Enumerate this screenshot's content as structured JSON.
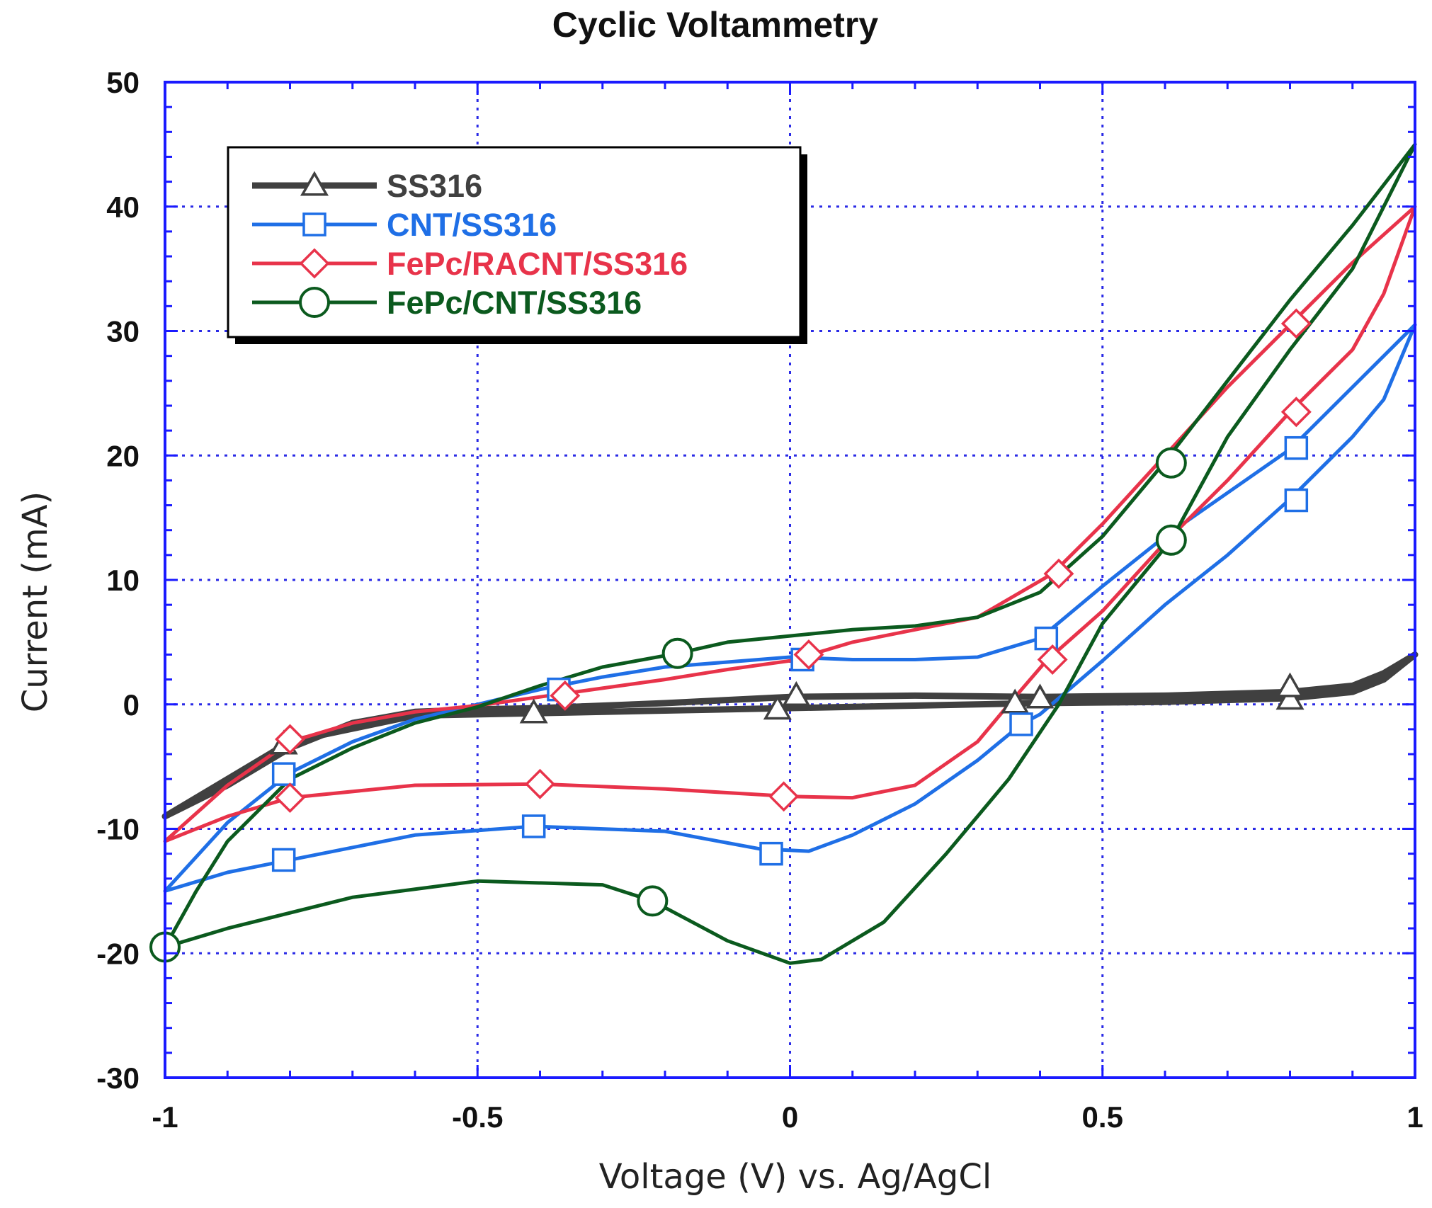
{
  "chart_data": {
    "type": "line",
    "title": "Cyclic Voltammetry",
    "xlabel": "Voltage (V) vs. Ag/AgCl",
    "ylabel": "Current (mA)",
    "xlim": [
      -1,
      1
    ],
    "ylim": [
      -30,
      50
    ],
    "xticks": [
      -1,
      -0.5,
      0,
      0.5,
      1
    ],
    "xtick_labels": [
      "-1",
      "-0.5",
      "0",
      "0.5",
      "1"
    ],
    "yticks": [
      -30,
      -20,
      -10,
      0,
      10,
      20,
      30,
      40,
      50
    ],
    "ytick_labels": [
      "-30",
      "-20",
      "-10",
      "0",
      "10",
      "20",
      "30",
      "40",
      "50"
    ],
    "grid": true,
    "legend_position": "top-left",
    "series": [
      {
        "name": "SS316",
        "color": "#404040",
        "marker": "triangle",
        "line_points": [
          [
            -1,
            -9
          ],
          [
            -0.9,
            -6.5
          ],
          [
            -0.8,
            -3.5
          ],
          [
            -0.7,
            -1.5
          ],
          [
            -0.6,
            -0.6
          ],
          [
            -0.5,
            -0.4
          ],
          [
            -0.4,
            -0.3
          ],
          [
            -0.2,
            0.1
          ],
          [
            0,
            0.6
          ],
          [
            0.2,
            0.7
          ],
          [
            0.4,
            0.6
          ],
          [
            0.6,
            0.7
          ],
          [
            0.8,
            1.0
          ],
          [
            0.9,
            1.5
          ],
          [
            0.95,
            2.5
          ],
          [
            1.0,
            4.0
          ],
          [
            0.95,
            2.0
          ],
          [
            0.9,
            1.0
          ],
          [
            0.8,
            0.5
          ],
          [
            0.6,
            0.2
          ],
          [
            0.4,
            0.1
          ],
          [
            0.2,
            -0.1
          ],
          [
            0,
            -0.3
          ],
          [
            -0.2,
            -0.5
          ],
          [
            -0.4,
            -0.7
          ],
          [
            -0.6,
            -0.9
          ],
          [
            -0.8,
            -3.0
          ],
          [
            -0.9,
            -6
          ],
          [
            -1,
            -9
          ]
        ],
        "markers": [
          [
            -0.81,
            -3.2
          ],
          [
            -0.41,
            -0.7
          ],
          [
            -0.02,
            -0.4
          ],
          [
            0.01,
            0.7
          ],
          [
            0.36,
            0.1
          ],
          [
            0.4,
            0.5
          ],
          [
            0.8,
            0.4
          ],
          [
            0.8,
            1.4
          ]
        ]
      },
      {
        "name": "CNT/SS316",
        "color": "#1f6fe6",
        "marker": "square",
        "line_points": [
          [
            -1,
            -15
          ],
          [
            -0.9,
            -9.5
          ],
          [
            -0.8,
            -5.5
          ],
          [
            -0.7,
            -3
          ],
          [
            -0.6,
            -1.2
          ],
          [
            -0.5,
            0
          ],
          [
            -0.4,
            1.2
          ],
          [
            -0.3,
            2.2
          ],
          [
            -0.2,
            3
          ],
          [
            -0.1,
            3.4
          ],
          [
            0,
            3.8
          ],
          [
            0.1,
            3.6
          ],
          [
            0.2,
            3.6
          ],
          [
            0.3,
            3.8
          ],
          [
            0.4,
            5.3
          ],
          [
            0.5,
            9.5
          ],
          [
            0.6,
            13.5
          ],
          [
            0.7,
            17
          ],
          [
            0.8,
            20.5
          ],
          [
            0.9,
            25.5
          ],
          [
            1.0,
            30.5
          ],
          [
            0.95,
            24.5
          ],
          [
            0.9,
            21.5
          ],
          [
            0.8,
            16.5
          ],
          [
            0.7,
            12
          ],
          [
            0.6,
            8
          ],
          [
            0.5,
            3.5
          ],
          [
            0.4,
            -0.8
          ],
          [
            0.37,
            -1.6
          ],
          [
            0.3,
            -4.5
          ],
          [
            0.2,
            -8
          ],
          [
            0.1,
            -10.5
          ],
          [
            0.03,
            -11.8
          ],
          [
            -0.05,
            -11.6
          ],
          [
            -0.2,
            -10.2
          ],
          [
            -0.41,
            -9.8
          ],
          [
            -0.6,
            -10.5
          ],
          [
            -0.8,
            -12.5
          ],
          [
            -0.9,
            -13.5
          ],
          [
            -1,
            -15
          ]
        ],
        "markers": [
          [
            -0.81,
            -5.6
          ],
          [
            -0.81,
            -12.5
          ],
          [
            -0.41,
            -9.8
          ],
          [
            -0.37,
            1.2
          ],
          [
            -0.03,
            -12.0
          ],
          [
            0.02,
            3.6
          ],
          [
            0.37,
            -1.6
          ],
          [
            0.41,
            5.3
          ],
          [
            0.81,
            16.4
          ],
          [
            0.81,
            20.6
          ]
        ]
      },
      {
        "name": "FePc/RACNT/SS316",
        "color": "#e8334a",
        "marker": "diamond",
        "line_points": [
          [
            -1,
            -11
          ],
          [
            -0.9,
            -6.5
          ],
          [
            -0.8,
            -3
          ],
          [
            -0.7,
            -1.5
          ],
          [
            -0.6,
            -0.6
          ],
          [
            -0.5,
            -0.1
          ],
          [
            -0.4,
            0.6
          ],
          [
            -0.3,
            1.3
          ],
          [
            -0.2,
            2
          ],
          [
            -0.1,
            2.8
          ],
          [
            0,
            3.5
          ],
          [
            0.1,
            5
          ],
          [
            0.2,
            6
          ],
          [
            0.3,
            7
          ],
          [
            0.42,
            10.5
          ],
          [
            0.5,
            14.5
          ],
          [
            0.6,
            20
          ],
          [
            0.7,
            25.5
          ],
          [
            0.8,
            30.5
          ],
          [
            0.9,
            35.5
          ],
          [
            1.0,
            40
          ],
          [
            0.95,
            33
          ],
          [
            0.9,
            28.5
          ],
          [
            0.8,
            23.5
          ],
          [
            0.7,
            18
          ],
          [
            0.6,
            13
          ],
          [
            0.5,
            7.5
          ],
          [
            0.41,
            3.5
          ],
          [
            0.35,
            0
          ],
          [
            0.3,
            -3
          ],
          [
            0.2,
            -6.5
          ],
          [
            0.1,
            -7.5
          ],
          [
            0.0,
            -7.4
          ],
          [
            -0.2,
            -6.8
          ],
          [
            -0.4,
            -6.4
          ],
          [
            -0.6,
            -6.5
          ],
          [
            -0.8,
            -7.5
          ],
          [
            -0.9,
            -9
          ],
          [
            -1,
            -11
          ]
        ],
        "markers": [
          [
            -0.8,
            -2.8
          ],
          [
            -0.8,
            -7.5
          ],
          [
            -0.4,
            -6.4
          ],
          [
            -0.36,
            0.7
          ],
          [
            -0.01,
            -7.4
          ],
          [
            0.03,
            4.0
          ],
          [
            0.42,
            3.6
          ],
          [
            0.43,
            10.5
          ],
          [
            0.81,
            23.5
          ],
          [
            0.81,
            30.6
          ]
        ]
      },
      {
        "name": "FePc/CNT/SS316",
        "color": "#0b5a1e",
        "marker": "circle",
        "line_points": [
          [
            -1,
            -19.5
          ],
          [
            -0.95,
            -15
          ],
          [
            -0.9,
            -11
          ],
          [
            -0.8,
            -6
          ],
          [
            -0.7,
            -3.5
          ],
          [
            -0.6,
            -1.5
          ],
          [
            -0.5,
            -0.2
          ],
          [
            -0.4,
            1.5
          ],
          [
            -0.3,
            3
          ],
          [
            -0.18,
            4.1
          ],
          [
            -0.1,
            5
          ],
          [
            0,
            5.5
          ],
          [
            0.1,
            6
          ],
          [
            0.2,
            6.3
          ],
          [
            0.3,
            7
          ],
          [
            0.4,
            9
          ],
          [
            0.5,
            13.5
          ],
          [
            0.6,
            19.5
          ],
          [
            0.7,
            26
          ],
          [
            0.8,
            32.5
          ],
          [
            0.9,
            38.5
          ],
          [
            1.0,
            45
          ],
          [
            0.9,
            35
          ],
          [
            0.8,
            28.5
          ],
          [
            0.7,
            21.5
          ],
          [
            0.61,
            13.2
          ],
          [
            0.5,
            6.5
          ],
          [
            0.43,
            0
          ],
          [
            0.35,
            -6
          ],
          [
            0.25,
            -12
          ],
          [
            0.15,
            -17.5
          ],
          [
            0.05,
            -20.5
          ],
          [
            0.0,
            -20.8
          ],
          [
            -0.1,
            -19
          ],
          [
            -0.22,
            -15.8
          ],
          [
            -0.3,
            -14.5
          ],
          [
            -0.5,
            -14.2
          ],
          [
            -0.7,
            -15.5
          ],
          [
            -0.9,
            -18
          ],
          [
            -1,
            -19.5
          ]
        ],
        "markers": [
          [
            -1.0,
            -19.5
          ],
          [
            -0.22,
            -15.8
          ],
          [
            -0.18,
            4.1
          ],
          [
            0.61,
            13.2
          ],
          [
            0.61,
            19.4
          ]
        ]
      }
    ]
  }
}
